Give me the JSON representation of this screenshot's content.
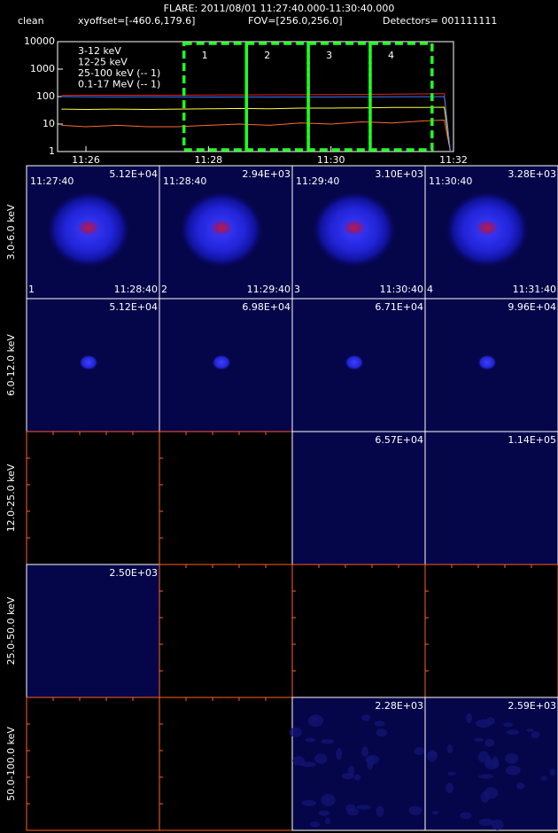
{
  "header": {
    "title": "FLARE: 2011/08/01 11:27:40.000-11:30:40.000",
    "mode": "clean",
    "xyoffset": "xyoffset=[-460.6,179.6]",
    "fov": "FOV=[256.0,256.0]",
    "detectors": "Detectors= 001111111"
  },
  "chart_data": {
    "type": "line",
    "log_y": true,
    "x": [
      25.6,
      26,
      26.5,
      27,
      27.5,
      28,
      28.5,
      29,
      29.5,
      30,
      30.5,
      31,
      31.5,
      31.85,
      31.95
    ],
    "series": [
      {
        "name": "3-12 keV",
        "color": "#e82020",
        "values": [
          110,
          112,
          112,
          113,
          113,
          114,
          115,
          116,
          117,
          118,
          120,
          122,
          125,
          128,
          1
        ]
      },
      {
        "name": "12-25 keV",
        "color": "#ff6a30",
        "values": [
          9,
          8,
          9,
          8,
          8,
          9,
          10,
          9,
          11,
          10,
          12,
          11,
          13,
          14,
          1
        ]
      },
      {
        "name": "25-100 keV (-- 1)",
        "color": "#ffff40",
        "values": [
          35,
          34,
          35,
          34,
          35,
          36,
          37,
          36,
          38,
          38,
          39,
          40,
          40,
          41,
          1
        ]
      },
      {
        "name": "0.1-17 MeV (-- 1)",
        "color": "#3a78ff",
        "values": [
          100,
          98,
          97,
          98,
          97,
          96,
          97,
          96,
          97,
          97,
          98,
          98,
          99,
          100,
          1
        ]
      }
    ],
    "xlim": [
      25.537,
      32
    ],
    "xticks": [
      {
        "value": 26,
        "label": "11:26"
      },
      {
        "value": 28,
        "label": "11:28"
      },
      {
        "value": 30,
        "label": "11:30"
      },
      {
        "value": 32,
        "label": "11:32"
      }
    ],
    "ylim": [
      1,
      10000
    ],
    "yticks": [
      1,
      10,
      100,
      1000,
      10000
    ],
    "intervals": [
      {
        "label": "1",
        "start": 27.6,
        "end": 28.62
      },
      {
        "label": "2",
        "start": 28.62,
        "end": 29.63
      },
      {
        "label": "3",
        "start": 29.63,
        "end": 30.64
      },
      {
        "label": "4",
        "start": 30.64,
        "end": 31.65
      }
    ],
    "interval_color": "#22ff22"
  },
  "image_grid": {
    "rows": [
      {
        "label": "3.0-6.0 keV",
        "cells": [
          {
            "kind": "large",
            "peak": "5.12E+04",
            "start": "11:27:40",
            "end": "11:28:40",
            "index": "1"
          },
          {
            "kind": "large",
            "peak": "2.94E+03",
            "start": "11:28:40",
            "end": "11:29:40",
            "index": "2"
          },
          {
            "kind": "large",
            "peak": "3.10E+03",
            "start": "11:29:40",
            "end": "11:30:40",
            "index": "3"
          },
          {
            "kind": "large",
            "peak": "3.28E+03",
            "start": "11:30:40",
            "end": "11:31:40",
            "index": "4"
          }
        ]
      },
      {
        "label": "6.0-12.0 keV",
        "cells": [
          {
            "kind": "small",
            "peak": "5.12E+04"
          },
          {
            "kind": "small",
            "peak": "6.98E+04"
          },
          {
            "kind": "small",
            "peak": "6.71E+04"
          },
          {
            "kind": "small",
            "peak": "9.96E+04"
          }
        ]
      },
      {
        "label": "12.0-25.0 keV",
        "cells": [
          {
            "kind": "empty"
          },
          {
            "kind": "empty"
          },
          {
            "kind": "blank",
            "peak": "6.57E+04"
          },
          {
            "kind": "blank",
            "peak": "1.14E+05"
          }
        ]
      },
      {
        "label": "25.0-50.0 keV",
        "cells": [
          {
            "kind": "blank",
            "peak": "2.50E+03"
          },
          {
            "kind": "empty"
          },
          {
            "kind": "empty"
          },
          {
            "kind": "empty"
          }
        ]
      },
      {
        "label": "50.0-100.0 keV",
        "cells": [
          {
            "kind": "empty"
          },
          {
            "kind": "empty"
          },
          {
            "kind": "noise",
            "peak": "2.28E+03"
          },
          {
            "kind": "noise",
            "peak": "2.59E+03"
          }
        ]
      }
    ]
  }
}
